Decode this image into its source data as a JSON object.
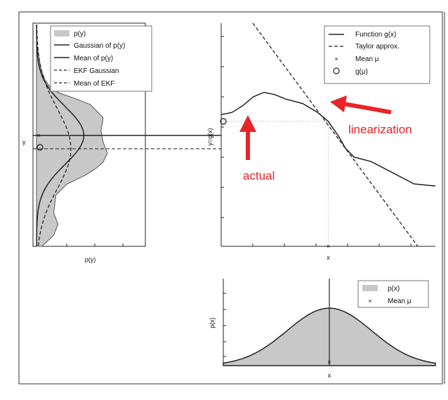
{
  "chart_data": [
    {
      "id": "py",
      "type": "area",
      "xlabel": "p(y)",
      "ylabel": "y",
      "legend_position": "top",
      "series": [
        {
          "name": "p(y)",
          "style": "filled-gray",
          "points_y_density": [
            [
              0.08,
              0
            ],
            [
              0.14,
              0.02
            ],
            [
              0.2,
              0.04
            ],
            [
              0.25,
              0.08
            ],
            [
              0.29,
              0.14
            ],
            [
              0.31,
              0.22
            ],
            [
              0.33,
              0.34
            ],
            [
              0.36,
              0.5
            ],
            [
              0.42,
              0.62
            ],
            [
              0.48,
              0.6
            ],
            [
              0.53,
              0.62
            ],
            [
              0.58,
              0.66
            ],
            [
              0.62,
              0.62
            ],
            [
              0.65,
              0.55
            ],
            [
              0.68,
              0.45
            ],
            [
              0.72,
              0.28
            ],
            [
              0.77,
              0.18
            ],
            [
              0.85,
              0.16
            ],
            [
              0.9,
              0.2
            ],
            [
              0.95,
              0.16
            ],
            [
              1.0,
              0.05
            ]
          ]
        },
        {
          "name": "Gaussian of p(y)",
          "style": "solid",
          "mean": 0.5,
          "std": 0.13,
          "peak": 0.44
        },
        {
          "name": "Mean of p(y)",
          "style": "solid-horizontal",
          "value": 0.5
        },
        {
          "name": "EKF Gaussian",
          "style": "dashed",
          "mean": 0.56,
          "std": 0.18,
          "peak": 0.32
        },
        {
          "name": "Mean of EKF",
          "style": "dashed-horizontal",
          "value": 0.56
        }
      ],
      "markers": [
        {
          "label": "x",
          "at": 0.5
        },
        {
          "label": "o",
          "at": 0.56
        }
      ]
    },
    {
      "id": "gx",
      "type": "line",
      "xlabel": "x",
      "ylabel": "y=g(x)",
      "legend_position": "top-right",
      "series": [
        {
          "name": "Function g(x)",
          "style": "solid",
          "points": [
            [
              0,
              0.59
            ],
            [
              0.05,
              0.6
            ],
            [
              0.1,
              0.63
            ],
            [
              0.15,
              0.67
            ],
            [
              0.2,
              0.69
            ],
            [
              0.25,
              0.68
            ],
            [
              0.3,
              0.66
            ],
            [
              0.38,
              0.64
            ],
            [
              0.45,
              0.6
            ],
            [
              0.5,
              0.56
            ],
            [
              0.55,
              0.49
            ],
            [
              0.58,
              0.44
            ],
            [
              0.62,
              0.4
            ],
            [
              0.7,
              0.38
            ],
            [
              0.8,
              0.33
            ],
            [
              0.9,
              0.28
            ],
            [
              1.0,
              0.27
            ]
          ]
        },
        {
          "name": "Taylor approx.",
          "style": "dashed",
          "points": [
            [
              0.0,
              1.0
            ],
            [
              1.0,
              0.0
            ]
          ]
        }
      ],
      "markers": [
        {
          "name": "Mean μ",
          "symbol": "x",
          "x": 0.5,
          "y": 0
        },
        {
          "name": "g(μ)",
          "symbol": "o",
          "x": 0,
          "y": 0.56
        }
      ],
      "annotations": [
        {
          "text": "linearization",
          "color": "#e8242a"
        },
        {
          "text": "actual",
          "color": "#e8242a"
        }
      ]
    },
    {
      "id": "px",
      "type": "area",
      "xlabel": "x",
      "ylabel": "p(x)",
      "legend_position": "top-right",
      "series": [
        {
          "name": "p(x)",
          "style": "filled-gray",
          "mean": 0.5,
          "std": 0.2,
          "peak": 0.66
        }
      ],
      "markers": [
        {
          "name": "Mean μ",
          "symbol": "x",
          "x": 0.5,
          "y": 0
        }
      ]
    }
  ],
  "ui": {
    "accent": "#e8242a",
    "fill_gray": "#c8c8c8"
  }
}
